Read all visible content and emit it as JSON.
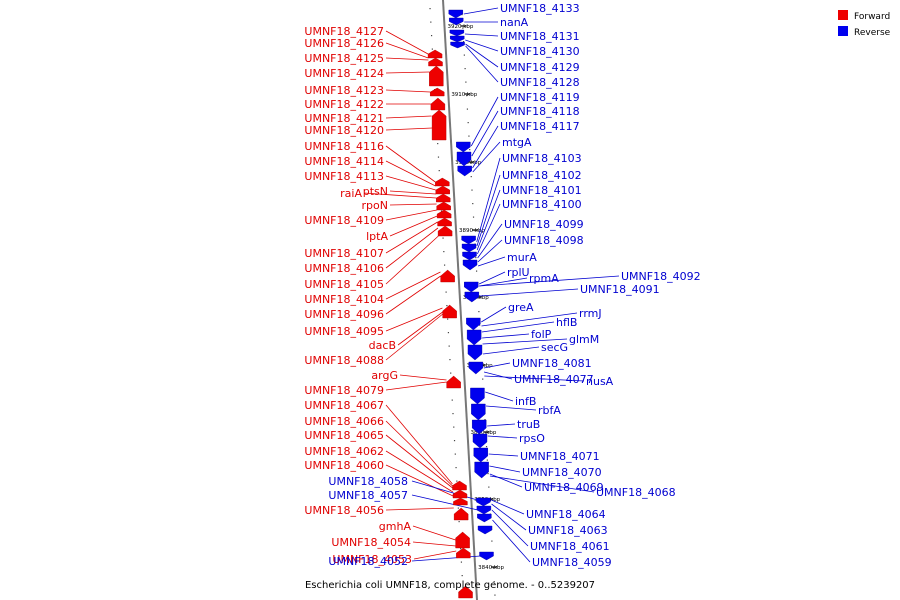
{
  "caption": "Escherichia coli UMNF18, complete genome. - 0..5239207",
  "legend": [
    {
      "label": "Forward",
      "color": "#ee0000"
    },
    {
      "label": "Reverse",
      "color": "#0000ee"
    }
  ],
  "ticks": [
    "3920 kbp",
    "3910 kbp",
    "3900 kbp",
    "3890 kbp",
    "3880 kbp",
    "3870 kbp",
    "3860 kbp",
    "3850 kbp",
    "3840 kbp"
  ],
  "forward_labels": [
    "UMNF18_4127",
    "UMNF18_4126",
    "UMNF18_4125",
    "UMNF18_4124",
    "UMNF18_4123",
    "UMNF18_4122",
    "UMNF18_4121",
    "UMNF18_4120",
    "UMNF18_4116",
    "UMNF18_4114",
    "UMNF18_4113",
    "ptsN",
    "raiA",
    "rpoN",
    "UMNF18_4109",
    "lptA",
    "UMNF18_4107",
    "UMNF18_4106",
    "UMNF18_4105",
    "UMNF18_4104",
    "UMNF18_4096",
    "UMNF18_4095",
    "dacB",
    "UMNF18_4088",
    "argG",
    "UMNF18_4079",
    "UMNF18_4067",
    "UMNF18_4066",
    "UMNF18_4065",
    "UMNF18_4062",
    "UMNF18_4060",
    "UMNF18_4056",
    "gmhA",
    "UMNF18_4054",
    "UMNF18_4053"
  ],
  "reverse_labels": [
    "UMNF18_4133",
    "nanA",
    "UMNF18_4131",
    "UMNF18_4130",
    "UMNF18_4129",
    "UMNF18_4128",
    "UMNF18_4119",
    "UMNF18_4118",
    "UMNF18_4117",
    "mtgA",
    "UMNF18_4103",
    "UMNF18_4102",
    "UMNF18_4101",
    "UMNF18_4100",
    "UMNF18_4099",
    "UMNF18_4098",
    "murA",
    "rplU",
    "rpmA",
    "UMNF18_4092",
    "UMNF18_4091",
    "greA",
    "rrmJ",
    "hflB",
    "folP",
    "glmM",
    "secG",
    "UMNF18_4081",
    "UMNF18_4077",
    "nusA",
    "infB",
    "rbfA",
    "truB",
    "rpsO",
    "UMNF18_4071",
    "UMNF18_4070",
    "UMNF18_4069",
    "UMNF18_4068",
    "UMNF18_4064",
    "UMNF18_4063",
    "UMNF18_4061",
    "UMNF18_4059",
    "UMNF18_4058",
    "UMNF18_4057",
    "UMNF18_4052"
  ]
}
